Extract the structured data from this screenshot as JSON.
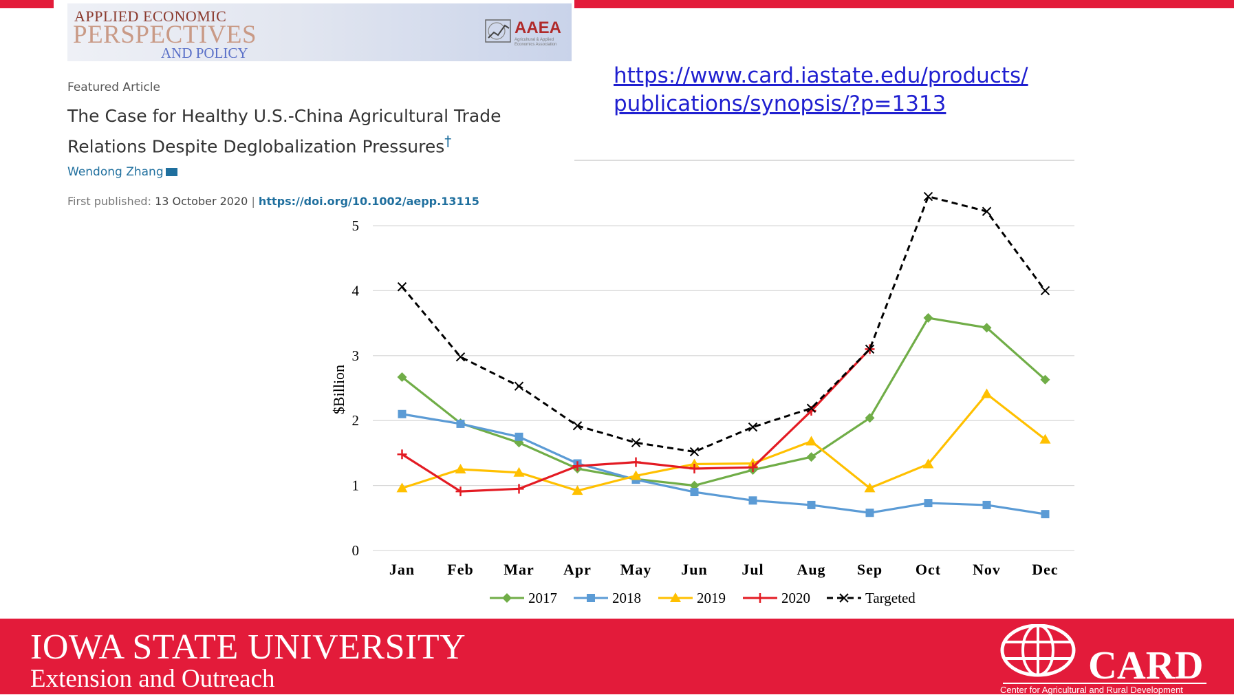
{
  "journal": {
    "line1": "APPLIED ECONOMIC",
    "line2": "PERSPECTIVES",
    "line3": "AND POLICY",
    "logo_text": "AAEA",
    "logo_sub": "Agricultural & Applied Economics Association"
  },
  "article": {
    "label": "Featured Article",
    "title": "The Case for Healthy U.S.-China Agricultural Trade Relations Despite Deglobalization Pressures",
    "title_mark": "†",
    "author": "Wendong Zhang",
    "published_label": "First published:",
    "published_date": "13 October 2020",
    "separator": "|",
    "doi": "https://doi.org/10.1002/aepp.13115"
  },
  "link": {
    "line1": "https://www.card.iastate.edu/products/",
    "line2": "publications/synopsis/?p=1313"
  },
  "chart_data": {
    "type": "line",
    "categories": [
      "Jan",
      "Feb",
      "Mar",
      "Apr",
      "May",
      "Jun",
      "Jul",
      "Aug",
      "Sep",
      "Oct",
      "Nov",
      "Dec"
    ],
    "ylabel": "$Billion",
    "ylim": [
      0,
      5
    ],
    "yticks": [
      0,
      1,
      2,
      3,
      4,
      5
    ],
    "grid": true,
    "legend_position": "bottom",
    "series": [
      {
        "name": "2017",
        "color": "#70ad47",
        "marker": "diamond",
        "dashed": false,
        "values": [
          2.67,
          1.96,
          1.66,
          1.26,
          1.1,
          1.0,
          1.24,
          1.44,
          2.04,
          3.58,
          3.43,
          2.63
        ]
      },
      {
        "name": "2018",
        "color": "#5b9bd5",
        "marker": "square",
        "dashed": false,
        "values": [
          2.1,
          1.95,
          1.75,
          1.34,
          1.09,
          0.9,
          0.77,
          0.7,
          0.58,
          0.73,
          0.7,
          0.56
        ]
      },
      {
        "name": "2019",
        "color": "#ffc000",
        "marker": "triangle",
        "dashed": false,
        "values": [
          0.96,
          1.25,
          1.2,
          0.92,
          1.15,
          1.33,
          1.34,
          1.68,
          0.96,
          1.33,
          2.41,
          1.71
        ]
      },
      {
        "name": "2020",
        "color": "#e31b23",
        "marker": "plus",
        "dashed": false,
        "values": [
          1.48,
          0.91,
          0.95,
          1.3,
          1.36,
          1.26,
          1.28,
          2.15,
          3.1,
          null,
          null,
          null
        ]
      },
      {
        "name": "Targeted",
        "color": "#000000",
        "marker": "x",
        "dashed": true,
        "values": [
          4.06,
          2.98,
          2.53,
          1.92,
          1.66,
          1.52,
          1.9,
          2.19,
          3.1,
          5.45,
          5.22,
          4.0
        ]
      }
    ]
  },
  "footer": {
    "university": "IOWA STATE UNIVERSITY",
    "unit": "Extension and Outreach",
    "card_logo": "CARD",
    "card_full": "Center for Agricultural and Rural Development"
  }
}
